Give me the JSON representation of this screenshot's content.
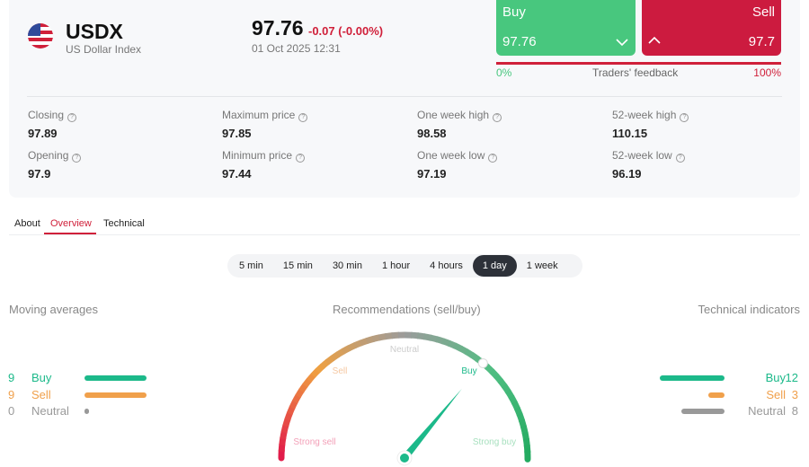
{
  "instrument": {
    "symbol": "USDX",
    "name": "US Dollar Index",
    "icon": "us-flag-icon",
    "price": "97.76",
    "change": "-0.07 (-0.00%)",
    "datetime": "01 Oct 2025 12:31"
  },
  "trade": {
    "buy_label": "Buy",
    "buy_price": "97.76",
    "sell_label": "Sell",
    "sell_price": "97.7",
    "feedback_left": "0%",
    "feedback_label": "Traders' feedback",
    "feedback_right": "100%",
    "buy_color": "#48c77e",
    "sell_color": "#cc1b3f"
  },
  "stats": [
    {
      "label": "Closing",
      "value": "97.89"
    },
    {
      "label": "Maximum price",
      "value": "97.85"
    },
    {
      "label": "One week high",
      "value": "98.58"
    },
    {
      "label": "52-week high",
      "value": "110.15"
    },
    {
      "label": "Opening",
      "value": "97.9"
    },
    {
      "label": "Minimum price",
      "value": "97.44"
    },
    {
      "label": "One week low",
      "value": "97.19"
    },
    {
      "label": "52-week low",
      "value": "96.19"
    }
  ],
  "tabs": [
    {
      "label": "About"
    },
    {
      "label": "Overview",
      "active": true
    },
    {
      "label": "Technical"
    }
  ],
  "timeframes": [
    {
      "label": "5 min"
    },
    {
      "label": "15 min"
    },
    {
      "label": "30 min"
    },
    {
      "label": "1 hour"
    },
    {
      "label": "4 hours"
    },
    {
      "label": "1 day",
      "active": true
    },
    {
      "label": "1 week"
    }
  ],
  "moving_averages": {
    "title": "Moving averages",
    "buy": {
      "count": "9",
      "label": "Buy"
    },
    "sell": {
      "count": "9",
      "label": "Sell"
    },
    "neutral": {
      "count": "0",
      "label": "Neutral"
    }
  },
  "technical_indicators": {
    "title": "Technical indicators",
    "buy": {
      "count": "12",
      "label": "Buy"
    },
    "sell": {
      "count": "3",
      "label": "Sell"
    },
    "neutral": {
      "count": "8",
      "label": "Neutral"
    }
  },
  "gauge": {
    "title": "Recommendations (sell/buy)",
    "labels": {
      "strong_sell": "Strong sell",
      "sell": "Sell",
      "neutral": "Neutral",
      "buy": "Buy",
      "strong_buy": "Strong buy"
    },
    "value": 0.72,
    "active": "Buy"
  },
  "colors": {
    "buy": "#1cb98a",
    "sell": "#f0a04b",
    "neutral": "#999999",
    "accent": "#d0203a"
  }
}
